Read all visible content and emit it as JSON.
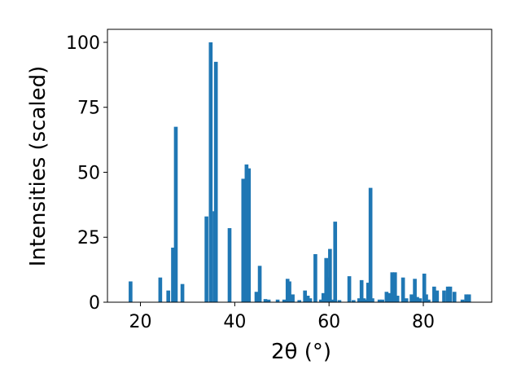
{
  "chart_data": {
    "type": "bar",
    "title": "",
    "xlabel": "2θ (°)",
    "ylabel": "Intensities (scaled)",
    "xlim": [
      13,
      94.5
    ],
    "ylim": [
      0,
      105
    ],
    "xticks": [
      20,
      40,
      60,
      80
    ],
    "yticks": [
      0,
      25,
      50,
      75,
      100
    ],
    "grid": false,
    "bar_color": "#1f77b4",
    "bar_width": 0.8,
    "x": [
      17.9,
      24.2,
      25.9,
      26.9,
      27.5,
      28.9,
      34.0,
      34.9,
      35.7,
      36.0,
      38.9,
      41.8,
      42.5,
      43.0,
      44.6,
      45.3,
      46.5,
      47.2,
      49.1,
      50.5,
      51.2,
      51.6,
      52.3,
      53.7,
      54.9,
      55.5,
      56.0,
      57.1,
      58.3,
      58.8,
      59.4,
      59.8,
      60.2,
      60.9,
      61.3,
      62.2,
      64.3,
      65.2,
      66.4,
      66.9,
      67.4,
      67.7,
      68.3,
      68.8,
      69.2,
      70.7,
      71.3,
      72.2,
      72.9,
      73.4,
      74.0,
      74.5,
      75.7,
      76.4,
      77.5,
      78.2,
      78.7,
      79.3,
      80.2,
      80.6,
      81.1,
      82.3,
      82.9,
      84.4,
      85.2,
      85.7,
      86.6,
      88.3,
      89.1,
      89.7
    ],
    "values": [
      8,
      9.5,
      4.5,
      21,
      67.5,
      7,
      33,
      100,
      35,
      92.5,
      28.5,
      47.5,
      53,
      51.5,
      4,
      14,
      1.2,
      1,
      1,
      1,
      9,
      8,
      3,
      0.8,
      4.5,
      2.5,
      1.5,
      18.5,
      1,
      3.5,
      17,
      9.5,
      20.5,
      1,
      31,
      0.8,
      10,
      0.8,
      1.5,
      8.5,
      1.5,
      1,
      7.5,
      44,
      1.5,
      1,
      1,
      4,
      3.5,
      11.5,
      11.5,
      2.5,
      9.5,
      1.5,
      3,
      9,
      2,
      1.5,
      11,
      3,
      1,
      6,
      4.5,
      4.5,
      6,
      6,
      4,
      1,
      3,
      3
    ]
  }
}
